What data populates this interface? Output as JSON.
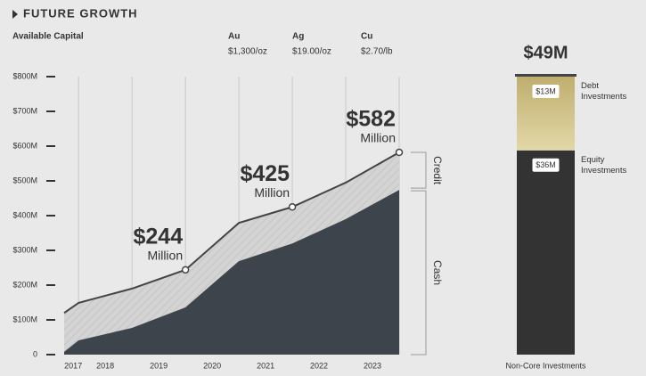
{
  "header": {
    "title": "FUTURE GROWTH",
    "subtitle": "Available Capital"
  },
  "prices": [
    {
      "symbol": "Au",
      "price": "$1,300/oz"
    },
    {
      "symbol": "Ag",
      "price": "$19.00/oz"
    },
    {
      "symbol": "Cu",
      "price": "$2.70/lb"
    }
  ],
  "chart_data": [
    {
      "type": "area",
      "x": [
        2017.73,
        2018,
        2019,
        2020,
        2021,
        2022,
        2023,
        2024
      ],
      "xlim": [
        2017.73,
        2024
      ],
      "xticks": [
        {
          "value": 2017.9,
          "label": "2017"
        },
        {
          "value": 2018.5,
          "label": "2018"
        },
        {
          "value": 2019.5,
          "label": "2019"
        },
        {
          "value": 2020.5,
          "label": "2020"
        },
        {
          "value": 2021.5,
          "label": "2021"
        },
        {
          "value": 2022.5,
          "label": "2022"
        },
        {
          "value": 2023.5,
          "label": "2023"
        }
      ],
      "ylim": [
        0,
        800
      ],
      "yticks": [
        0,
        {
          "value": 100,
          "label": "$100M"
        },
        {
          "value": 200,
          "label": "$200M"
        },
        {
          "value": 300,
          "label": "$300M"
        },
        {
          "value": 400,
          "label": "$400M"
        },
        {
          "value": 500,
          "label": "$500M"
        },
        {
          "value": 600,
          "label": "$600M"
        },
        {
          "value": 700,
          "label": "$700M"
        },
        {
          "value": 800,
          "label": "$800M"
        }
      ],
      "series": [
        {
          "kind": "area",
          "color": "#3e444b",
          "values": [
            8,
            41,
            77,
            136,
            269,
            320,
            390,
            474
          ]
        },
        {
          "kind": "line",
          "color": "#444444",
          "values": [
            120,
            149,
            190,
            244,
            379,
            425,
            495,
            582
          ],
          "value_labels": [
            null,
            null,
            null,
            "$244",
            null,
            "$425",
            null,
            "$582"
          ]
        }
      ],
      "value_label_unit": "Million",
      "brackets": [
        {
          "label": "Credit"
        },
        {
          "label": "Cash"
        }
      ]
    },
    {
      "type": "stacked_bar",
      "categories": [
        "Non-Core Investments"
      ],
      "total": 49,
      "total_label": "$49M",
      "series": [
        {
          "name": "Equity Investments",
          "color": "#333333",
          "values": [
            36
          ],
          "value_labels": [
            "$36M"
          ]
        },
        {
          "name": "Debt Investments",
          "color": "#d3c382",
          "values": [
            13
          ],
          "value_labels": [
            "$13M"
          ]
        }
      ]
    }
  ]
}
